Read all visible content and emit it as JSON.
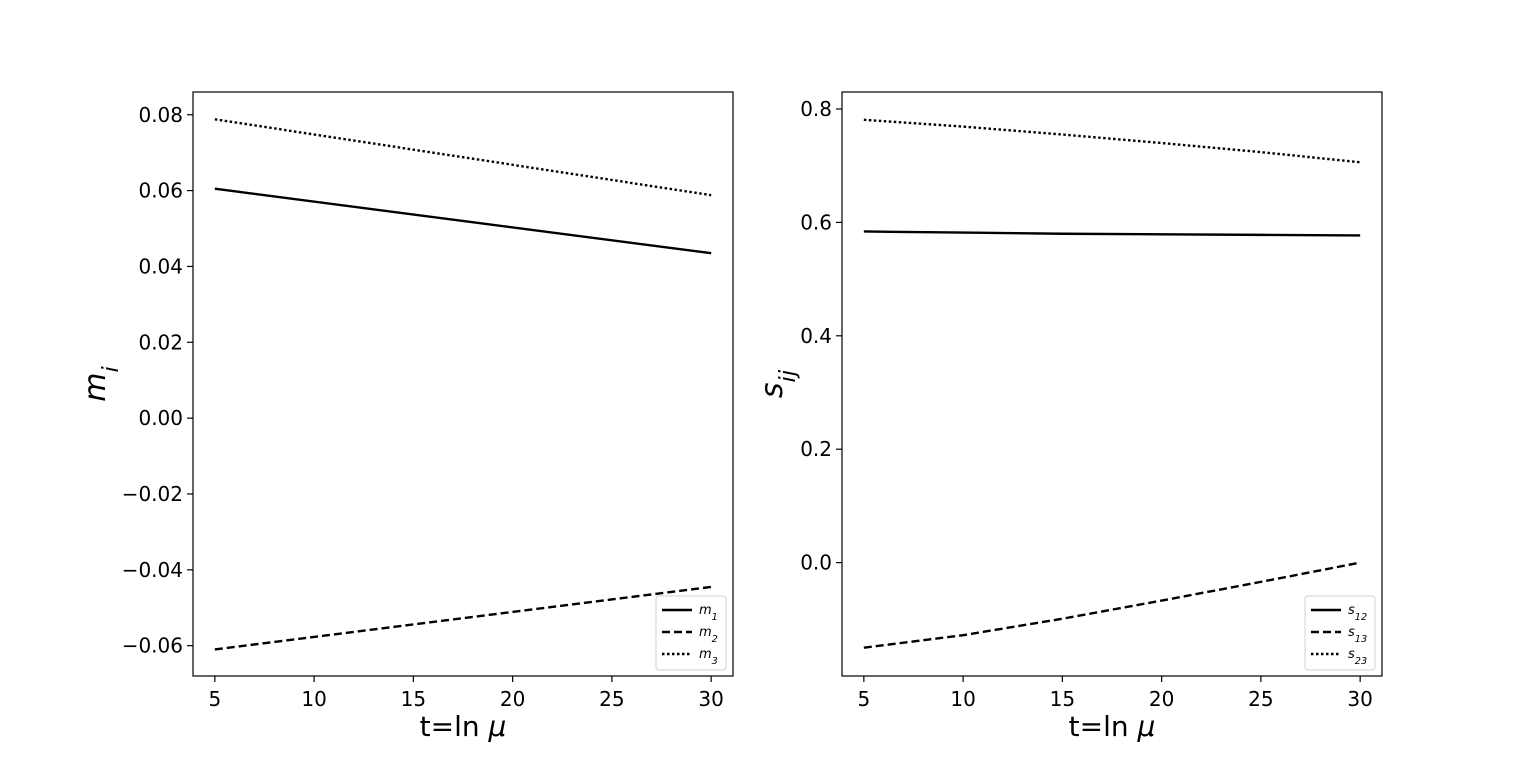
{
  "chart_data": [
    {
      "type": "line",
      "xlabel": "t=ln μ",
      "ylabel": "m_i",
      "xlim": [
        3.9,
        31.1
      ],
      "ylim": [
        -0.068,
        0.086
      ],
      "xticks": [
        "5",
        "10",
        "15",
        "20",
        "25",
        "30"
      ],
      "yticks": [
        "0.08",
        "0.06",
        "0.04",
        "0.02",
        "0.00",
        "−0.02",
        "−0.04",
        "−0.06"
      ],
      "legend_position": "top-right",
      "series": [
        {
          "name": "m_1",
          "style": "solid",
          "x": [
            5,
            30
          ],
          "y": [
            0.0605,
            0.0435
          ]
        },
        {
          "name": "m_2",
          "style": "dashed",
          "x": [
            5,
            30
          ],
          "y": [
            -0.061,
            -0.0445
          ]
        },
        {
          "name": "m_3",
          "style": "dotted",
          "x": [
            5,
            30
          ],
          "y": [
            0.0788,
            0.0588
          ]
        }
      ]
    },
    {
      "type": "line",
      "xlabel": "t=ln μ",
      "ylabel": "s_ij",
      "xlim": [
        3.9,
        31.1
      ],
      "ylim": [
        -0.2,
        0.83
      ],
      "xticks": [
        "5",
        "10",
        "15",
        "20",
        "25",
        "30"
      ],
      "yticks": [
        "0.8",
        "0.6",
        "0.4",
        "0.2",
        "0.0"
      ],
      "legend_position": "bottom-right",
      "series": [
        {
          "name": "s_12",
          "style": "solid",
          "x": [
            5,
            10,
            15,
            20,
            25,
            30
          ],
          "y": [
            0.584,
            0.582,
            0.58,
            0.579,
            0.578,
            0.577
          ]
        },
        {
          "name": "s_13",
          "style": "dashed",
          "x": [
            5,
            10,
            15,
            20,
            25,
            30
          ],
          "y": [
            -0.15,
            -0.128,
            -0.099,
            -0.067,
            -0.034,
            0.0
          ]
        },
        {
          "name": "s_23",
          "style": "dotted",
          "x": [
            5,
            10,
            15,
            20,
            25,
            30
          ],
          "y": [
            0.781,
            0.769,
            0.755,
            0.74,
            0.724,
            0.706
          ]
        }
      ]
    }
  ]
}
